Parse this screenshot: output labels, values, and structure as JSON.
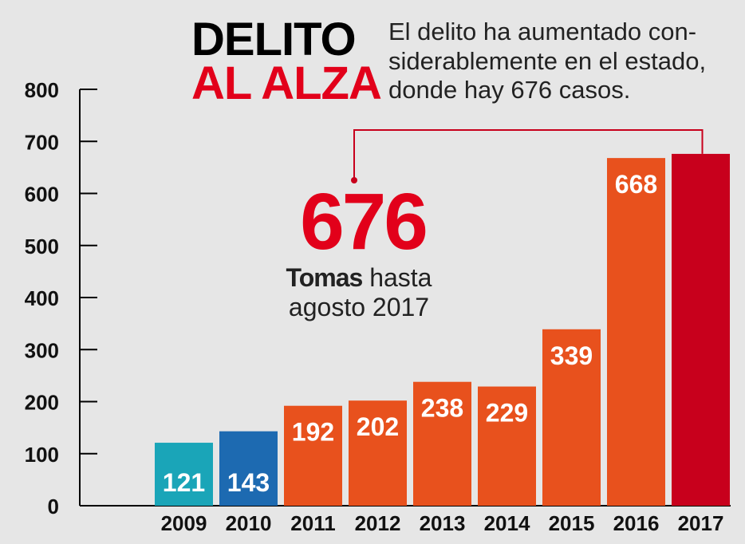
{
  "title": {
    "line1": "DELITO",
    "line2": "AL ALZA"
  },
  "subtitle": {
    "line1": "El delito ha aumentado con-",
    "line2": "siderablemente en el estado,",
    "line3": "donde hay 676 casos."
  },
  "highlight": {
    "number": "676",
    "caption_bold": "Tomas",
    "caption_rest": "hasta",
    "caption_line2": "agosto 2017"
  },
  "colors": {
    "background": "#e6e6e6",
    "teal": "#1aa5b8",
    "blue": "#1d6ab1",
    "orange": "#e8511d",
    "red": "#c8001c",
    "accent_red": "#e2001a"
  },
  "chart_data": {
    "type": "bar",
    "categories": [
      "2009",
      "2010",
      "2011",
      "2012",
      "2013",
      "2014",
      "2015",
      "2016",
      "2017"
    ],
    "values": [
      121,
      143,
      192,
      202,
      238,
      229,
      339,
      668,
      676
    ],
    "value_labels": [
      "121",
      "143",
      "192",
      "202",
      "238",
      "229",
      "339",
      "668",
      ""
    ],
    "bar_colors": [
      "#1aa5b8",
      "#1d6ab1",
      "#e8511d",
      "#e8511d",
      "#e8511d",
      "#e8511d",
      "#e8511d",
      "#e8511d",
      "#c8001c"
    ],
    "yticks": [
      0,
      100,
      200,
      300,
      400,
      500,
      600,
      700,
      800
    ],
    "ylim": [
      0,
      800
    ],
    "xlabel": "",
    "ylabel": "",
    "grid": false
  }
}
